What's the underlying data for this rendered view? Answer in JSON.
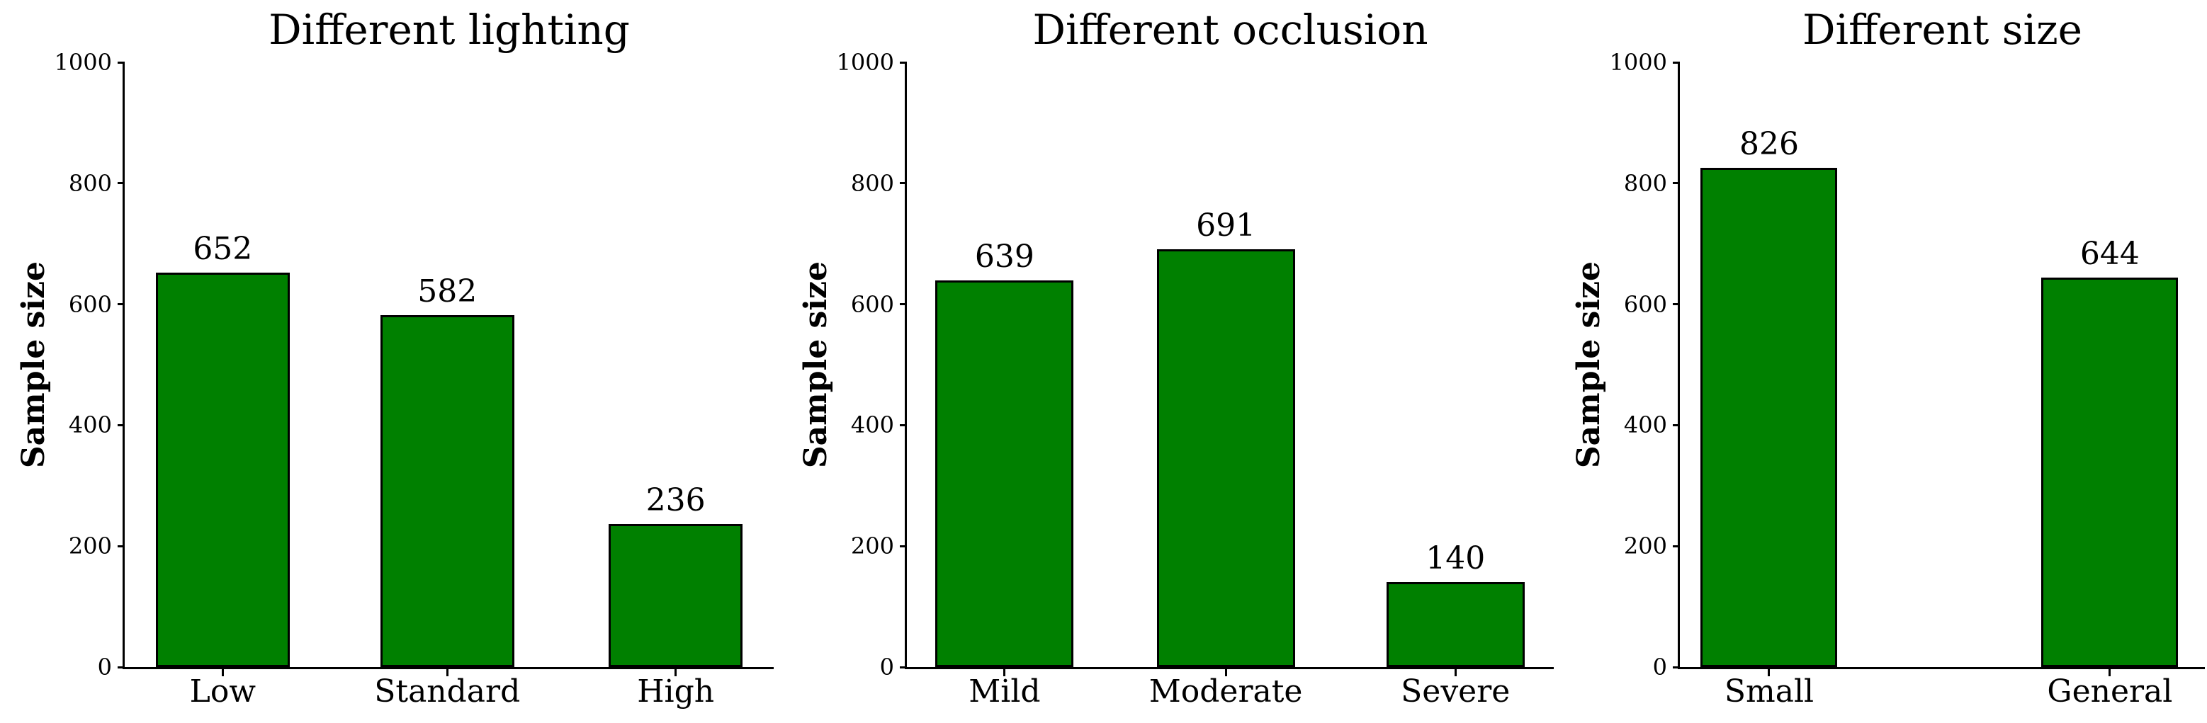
{
  "figure": {
    "background_color": "#ffffff",
    "bar_fill_color": "#008000",
    "bar_edge_color": "#000000",
    "axis_color": "#000000",
    "text_color": "#000000"
  },
  "chart_data": [
    {
      "type": "bar",
      "title": "Different lighting",
      "xlabel": "",
      "ylabel": "Sample size",
      "categories": [
        "Low",
        "Standard",
        "High"
      ],
      "values": [
        652,
        582,
        236
      ],
      "bar_labels": [
        "652",
        "582",
        "236"
      ],
      "yticks": [
        0,
        200,
        400,
        600,
        800,
        1000
      ],
      "ylim": [
        0,
        1000
      ],
      "grid": false
    },
    {
      "type": "bar",
      "title": "Different occlusion",
      "xlabel": "",
      "ylabel": "Sample size",
      "categories": [
        "Mild",
        "Moderate",
        "Severe"
      ],
      "values": [
        639,
        691,
        140
      ],
      "bar_labels": [
        "639",
        "691",
        "140"
      ],
      "yticks": [
        0,
        200,
        400,
        600,
        800,
        1000
      ],
      "ylim": [
        0,
        1000
      ],
      "grid": false
    },
    {
      "type": "bar",
      "title": "Different size",
      "xlabel": "",
      "ylabel": "Sample size",
      "categories": [
        "Small",
        "General"
      ],
      "values": [
        826,
        644
      ],
      "bar_labels": [
        "826",
        "644"
      ],
      "yticks": [
        0,
        200,
        400,
        600,
        800,
        1000
      ],
      "ylim": [
        0,
        1000
      ],
      "grid": false
    }
  ]
}
